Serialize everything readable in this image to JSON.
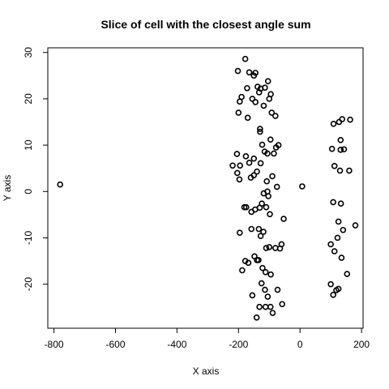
{
  "chart_data": {
    "type": "scatter",
    "title": "Slice of cell with the closest angle sum",
    "xlabel": "X axis",
    "ylabel": "Y axis",
    "xlim": [
      -820,
      205
    ],
    "ylim": [
      -29.5,
      31
    ],
    "xticks": [
      -800,
      -600,
      -400,
      -200,
      0,
      200
    ],
    "yticks": [
      -20,
      -10,
      0,
      10,
      20,
      30
    ],
    "marker": "open-circle",
    "color": "#000000",
    "grid": false,
    "points": [
      [
        -780,
        1.5
      ],
      [
        -178,
        28.6
      ],
      [
        -202,
        26.0
      ],
      [
        -165,
        25.7
      ],
      [
        -150,
        25.0
      ],
      [
        -145,
        25.6
      ],
      [
        -172,
        22.3
      ],
      [
        -138,
        22.6
      ],
      [
        -128,
        22.2
      ],
      [
        -114,
        22.4
      ],
      [
        -104,
        23.8
      ],
      [
        -133,
        21.4
      ],
      [
        -95,
        21.0
      ],
      [
        -190,
        20.4
      ],
      [
        -100,
        20.0
      ],
      [
        -196,
        19.4
      ],
      [
        -155,
        20.0
      ],
      [
        -145,
        19.3
      ],
      [
        -118,
        18.5
      ],
      [
        -200,
        17.0
      ],
      [
        -92,
        17.0
      ],
      [
        -170,
        15.9
      ],
      [
        -80,
        16.3
      ],
      [
        -130,
        13.5
      ],
      [
        -130,
        12.9
      ],
      [
        -96,
        11.2
      ],
      [
        -123,
        10.1
      ],
      [
        -70,
        10.0
      ],
      [
        -78,
        9.5
      ],
      [
        -115,
        8.6
      ],
      [
        -106,
        8.2
      ],
      [
        -85,
        8.2
      ],
      [
        -205,
        8.1
      ],
      [
        -176,
        7.6
      ],
      [
        -150,
        7.1
      ],
      [
        -165,
        6.2
      ],
      [
        -128,
        6.1
      ],
      [
        -219,
        5.6
      ],
      [
        -195,
        5.6
      ],
      [
        -140,
        4.3
      ],
      [
        -204,
        4.0
      ],
      [
        -150,
        3.5
      ],
      [
        -90,
        3.3
      ],
      [
        -197,
        2.6
      ],
      [
        -160,
        3.0
      ],
      [
        -108,
        2.2
      ],
      [
        -75,
        1.0
      ],
      [
        7,
        1.1
      ],
      [
        -106,
        0.0
      ],
      [
        -118,
        -0.4
      ],
      [
        -103,
        -1.0
      ],
      [
        -124,
        -2.6
      ],
      [
        -110,
        -3.4
      ],
      [
        -175,
        -3.4
      ],
      [
        -181,
        -3.4
      ],
      [
        -158,
        -4.4
      ],
      [
        -146,
        -3.9
      ],
      [
        -131,
        -3.5
      ],
      [
        -98,
        -4.9
      ],
      [
        -53,
        -5.9
      ],
      [
        -158,
        -8.1
      ],
      [
        -196,
        -8.9
      ],
      [
        -134,
        -8.1
      ],
      [
        -119,
        -8.7
      ],
      [
        -128,
        -9.6
      ],
      [
        -60,
        -11.4
      ],
      [
        -65,
        -12.3
      ],
      [
        -100,
        -12.0
      ],
      [
        -80,
        -12.2
      ],
      [
        -110,
        -12.2
      ],
      [
        -148,
        -14.0
      ],
      [
        -140,
        -14.8
      ],
      [
        -135,
        -14.8
      ],
      [
        -178,
        -15.0
      ],
      [
        -168,
        -15.4
      ],
      [
        -122,
        -16.5
      ],
      [
        -112,
        -17.4
      ],
      [
        -188,
        -17.0
      ],
      [
        -95,
        -17.9
      ],
      [
        -125,
        -19.8
      ],
      [
        -114,
        -21.2
      ],
      [
        -105,
        -22.7
      ],
      [
        -73,
        -21.2
      ],
      [
        -155,
        -22.4
      ],
      [
        -96,
        -24.9
      ],
      [
        -112,
        -24.9
      ],
      [
        -132,
        -24.9
      ],
      [
        -58,
        -24.3
      ],
      [
        -89,
        -26.2
      ],
      [
        -141,
        -27.2
      ],
      [
        109,
        14.6
      ],
      [
        127,
        15.0
      ],
      [
        137,
        15.6
      ],
      [
        163,
        15.5
      ],
      [
        132,
        11.1
      ],
      [
        104,
        9.2
      ],
      [
        132,
        9.0
      ],
      [
        143,
        9.1
      ],
      [
        112,
        5.5
      ],
      [
        130,
        4.5
      ],
      [
        160,
        4.5
      ],
      [
        108,
        -2.3
      ],
      [
        133,
        -2.6
      ],
      [
        125,
        -6.5
      ],
      [
        180,
        -7.3
      ],
      [
        140,
        -8.3
      ],
      [
        122,
        -10.0
      ],
      [
        100,
        -11.4
      ],
      [
        112,
        -12.9
      ],
      [
        135,
        -14.3
      ],
      [
        153,
        -17.8
      ],
      [
        100,
        -20.0
      ],
      [
        125,
        -21.0
      ],
      [
        118,
        -21.3
      ],
      [
        108,
        -22.3
      ]
    ]
  }
}
